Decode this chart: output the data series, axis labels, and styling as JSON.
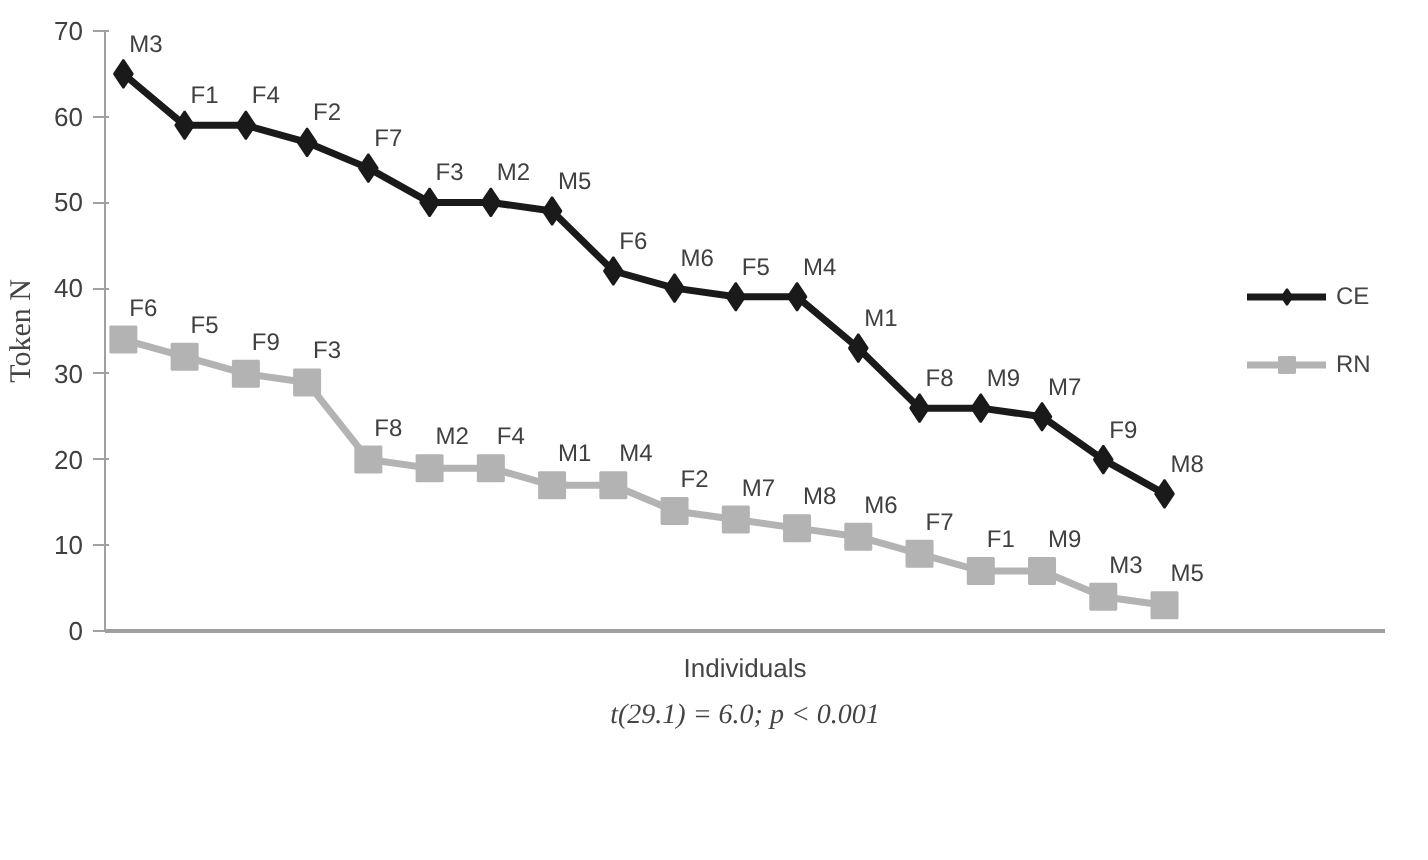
{
  "chart_data": {
    "type": "line",
    "xlabel": "Individuals",
    "ylabel": "Token N",
    "categories": [
      null,
      null,
      null,
      null,
      null,
      null,
      null,
      null,
      null,
      null,
      null,
      null,
      null,
      null,
      null,
      null,
      null,
      null
    ],
    "series": [
      {
        "name": "CE",
        "color": "#1a1a1a",
        "marker": "diamond",
        "values": [
          65,
          59,
          59,
          57,
          54,
          50,
          50,
          49,
          42,
          40,
          39,
          39,
          33,
          26,
          26,
          25,
          20,
          16
        ],
        "value_labels": [
          "M3",
          "F1",
          "F4",
          "F2",
          "F7",
          "F3",
          "M2",
          "M5",
          "F6",
          "M6",
          "F5",
          "M4",
          "M1",
          "F8",
          "M9",
          "M7",
          "F9",
          "M8"
        ]
      },
      {
        "name": "RN",
        "color": "#b3b3b3",
        "marker": "square",
        "values": [
          34,
          32,
          30,
          29,
          20,
          19,
          19,
          17,
          17,
          14,
          13,
          12,
          11,
          9,
          7,
          7,
          4,
          3
        ],
        "value_labels": [
          "F6",
          "F5",
          "F9",
          "F3",
          "F8",
          "M2",
          "F4",
          "M1",
          "M4",
          "F2",
          "M7",
          "M8",
          "M6",
          "F7",
          "F1",
          "M9",
          "M3",
          "M5"
        ]
      }
    ],
    "ylim": [
      0,
      70
    ],
    "yticks": [
      0,
      10,
      20,
      30,
      40,
      50,
      60,
      70
    ],
    "grid": false,
    "legend": "right",
    "line_style": "solid",
    "annotations": [
      "t(29.1) = 6.0; p < 0.001"
    ]
  }
}
